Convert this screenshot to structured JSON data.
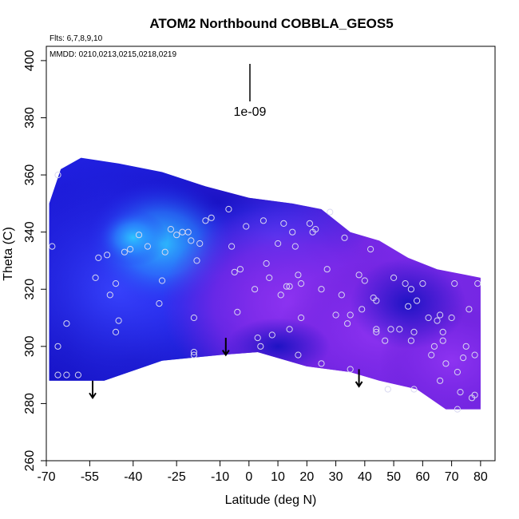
{
  "chart_data": {
    "type": "heatmap",
    "title": "ATOM2 Northbound COBBLA_GEOS5",
    "notes": [
      "Flts: 6,7,8,9,10",
      "MMDD: 0210,0213,0215,0218,0219"
    ],
    "xlabel": "Latitude (deg N)",
    "ylabel": "Theta (C)",
    "xlim": [
      -70,
      85
    ],
    "ylim": [
      260,
      405
    ],
    "x_ticks": [
      -70,
      -55,
      -40,
      -25,
      -10,
      0,
      10,
      20,
      30,
      40,
      50,
      60,
      70,
      80
    ],
    "x_tick_labels": [
      "-70",
      "-55",
      "-40",
      "-25",
      "-10",
      "0",
      "10",
      "20",
      "30",
      "40",
      "50",
      "60",
      "70",
      "80"
    ],
    "y_ticks": [
      260,
      280,
      300,
      320,
      340,
      360,
      380,
      400
    ],
    "y_tick_labels": [
      "260",
      "280",
      "300",
      "320",
      "340",
      "360",
      "380",
      "400"
    ],
    "scale_label": "1e-09",
    "colors": {
      "dark_blue": "#1a14d6",
      "blue": "#2a2ef0",
      "cyan": "#2ec8ff",
      "purple": "#7b26e6",
      "violet": "#8a2cf0"
    },
    "field_region": {
      "top_boundary": [
        [
          -69,
          350
        ],
        [
          -65,
          362
        ],
        [
          -58,
          366
        ],
        [
          -45,
          364
        ],
        [
          -30,
          361
        ],
        [
          -15,
          356
        ],
        [
          0,
          352
        ],
        [
          15,
          350
        ],
        [
          25,
          348
        ],
        [
          35,
          340
        ],
        [
          45,
          337
        ],
        [
          55,
          331
        ],
        [
          65,
          327
        ],
        [
          75,
          325
        ],
        [
          80,
          324
        ]
      ],
      "bottom_boundary": [
        [
          -69,
          288
        ],
        [
          -50,
          288
        ],
        [
          -30,
          295
        ],
        [
          -10,
          297
        ],
        [
          3,
          298
        ],
        [
          20,
          293
        ],
        [
          35,
          291
        ],
        [
          45,
          288
        ],
        [
          58,
          285
        ],
        [
          68,
          278
        ],
        [
          80,
          278
        ]
      ]
    },
    "arrows": [
      {
        "x": -54,
        "y_start": 288,
        "y_end": 282
      },
      {
        "x": -8,
        "y_start": 303,
        "y_end": 297
      },
      {
        "x": 38,
        "y_start": 292,
        "y_end": 286
      }
    ],
    "points": [
      [
        -68,
        335
      ],
      [
        -66,
        360
      ],
      [
        -66,
        300
      ],
      [
        -66,
        290
      ],
      [
        -63,
        308
      ],
      [
        -63,
        290
      ],
      [
        -59,
        290
      ],
      [
        -53,
        324
      ],
      [
        -52,
        331
      ],
      [
        -49,
        332
      ],
      [
        -48,
        318
      ],
      [
        -46,
        322
      ],
      [
        -46,
        305
      ],
      [
        -45,
        309
      ],
      [
        -43,
        333
      ],
      [
        -41,
        334
      ],
      [
        -38,
        339
      ],
      [
        -35,
        335
      ],
      [
        -31,
        315
      ],
      [
        -30,
        323
      ],
      [
        -29,
        333
      ],
      [
        -27,
        341
      ],
      [
        -25,
        339
      ],
      [
        -23,
        340
      ],
      [
        -21,
        340
      ],
      [
        -20,
        337
      ],
      [
        -19,
        310
      ],
      [
        -19,
        298
      ],
      [
        -19,
        297
      ],
      [
        -18,
        330
      ],
      [
        -17,
        336
      ],
      [
        -15,
        344
      ],
      [
        -13,
        345
      ],
      [
        -7,
        348
      ],
      [
        -6,
        335
      ],
      [
        -5,
        326
      ],
      [
        -4,
        312
      ],
      [
        -3,
        327
      ],
      [
        -1,
        342
      ],
      [
        2,
        320
      ],
      [
        3,
        303
      ],
      [
        4,
        300
      ],
      [
        5,
        344
      ],
      [
        6,
        329
      ],
      [
        7,
        324
      ],
      [
        8,
        304
      ],
      [
        10,
        336
      ],
      [
        11,
        318
      ],
      [
        12,
        343
      ],
      [
        13,
        321
      ],
      [
        14,
        321
      ],
      [
        14,
        306
      ],
      [
        15,
        340
      ],
      [
        16,
        335
      ],
      [
        17,
        325
      ],
      [
        17,
        297
      ],
      [
        18,
        322
      ],
      [
        18,
        310
      ],
      [
        21,
        343
      ],
      [
        22,
        340
      ],
      [
        23,
        341
      ],
      [
        25,
        320
      ],
      [
        25,
        294
      ],
      [
        27,
        327
      ],
      [
        28,
        347
      ],
      [
        30,
        311
      ],
      [
        32,
        318
      ],
      [
        33,
        338
      ],
      [
        34,
        308
      ],
      [
        35,
        311
      ],
      [
        35,
        292
      ],
      [
        38,
        325
      ],
      [
        39,
        313
      ],
      [
        40,
        323
      ],
      [
        42,
        334
      ],
      [
        43,
        317
      ],
      [
        44,
        316
      ],
      [
        44,
        306
      ],
      [
        44,
        305
      ],
      [
        47,
        302
      ],
      [
        48,
        285
      ],
      [
        49,
        306
      ],
      [
        50,
        324
      ],
      [
        52,
        306
      ],
      [
        54,
        322
      ],
      [
        55,
        314
      ],
      [
        56,
        320
      ],
      [
        56,
        302
      ],
      [
        57,
        305
      ],
      [
        57,
        285
      ],
      [
        58,
        316
      ],
      [
        60,
        322
      ],
      [
        62,
        310
      ],
      [
        63,
        297
      ],
      [
        64,
        300
      ],
      [
        65,
        309
      ],
      [
        66,
        311
      ],
      [
        66,
        288
      ],
      [
        67,
        305
      ],
      [
        67,
        302
      ],
      [
        68,
        294
      ],
      [
        70,
        310
      ],
      [
        71,
        322
      ],
      [
        72,
        291
      ],
      [
        72,
        278
      ],
      [
        73,
        284
      ],
      [
        74,
        296
      ],
      [
        75,
        300
      ],
      [
        76,
        313
      ],
      [
        77,
        282
      ],
      [
        78,
        297
      ],
      [
        78,
        283
      ],
      [
        79,
        322
      ]
    ]
  }
}
